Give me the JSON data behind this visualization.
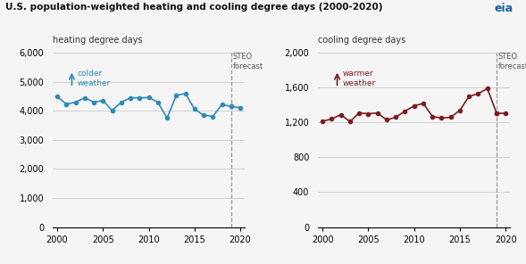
{
  "title": "U.S. population-weighted heating and cooling degree days (2000-2020)",
  "left_ylabel": "heating degree days",
  "right_ylabel": "cooling degree days",
  "steo_label": "STEO\nforecast",
  "left_arrow_label": "colder\nweather",
  "right_arrow_label": "warmer\nweather",
  "forecast_year": 2019,
  "left_color": "#2e8bb5",
  "right_color": "#7b1c22",
  "background_color": "#f5f5f5",
  "grid_color": "#cccccc",
  "left_ylim": [
    0,
    6000
  ],
  "right_ylim": [
    0,
    2000
  ],
  "left_yticks": [
    0,
    1000,
    2000,
    3000,
    4000,
    5000,
    6000
  ],
  "right_yticks": [
    0,
    400,
    800,
    1200,
    1600,
    2000
  ],
  "xlim": [
    1999.5,
    2020.5
  ],
  "xticks": [
    2000,
    2005,
    2010,
    2015,
    2020
  ],
  "heating_years": [
    2000,
    2001,
    2002,
    2003,
    2004,
    2005,
    2006,
    2007,
    2008,
    2009,
    2010,
    2011,
    2012,
    2013,
    2014,
    2015,
    2016,
    2017,
    2018,
    2019,
    2020
  ],
  "heating_values": [
    4490,
    4230,
    4300,
    4450,
    4300,
    4360,
    4010,
    4300,
    4450,
    4450,
    4460,
    4300,
    3750,
    4530,
    4600,
    4060,
    3850,
    3810,
    4220,
    4150,
    4110
  ],
  "cooling_years": [
    2000,
    2001,
    2002,
    2003,
    2004,
    2005,
    2006,
    2007,
    2008,
    2009,
    2010,
    2011,
    2012,
    2013,
    2014,
    2015,
    2016,
    2017,
    2018,
    2019,
    2020
  ],
  "cooling_values": [
    1215,
    1240,
    1290,
    1210,
    1310,
    1300,
    1310,
    1230,
    1260,
    1330,
    1390,
    1420,
    1270,
    1250,
    1260,
    1340,
    1500,
    1530,
    1590,
    1310,
    1310
  ]
}
